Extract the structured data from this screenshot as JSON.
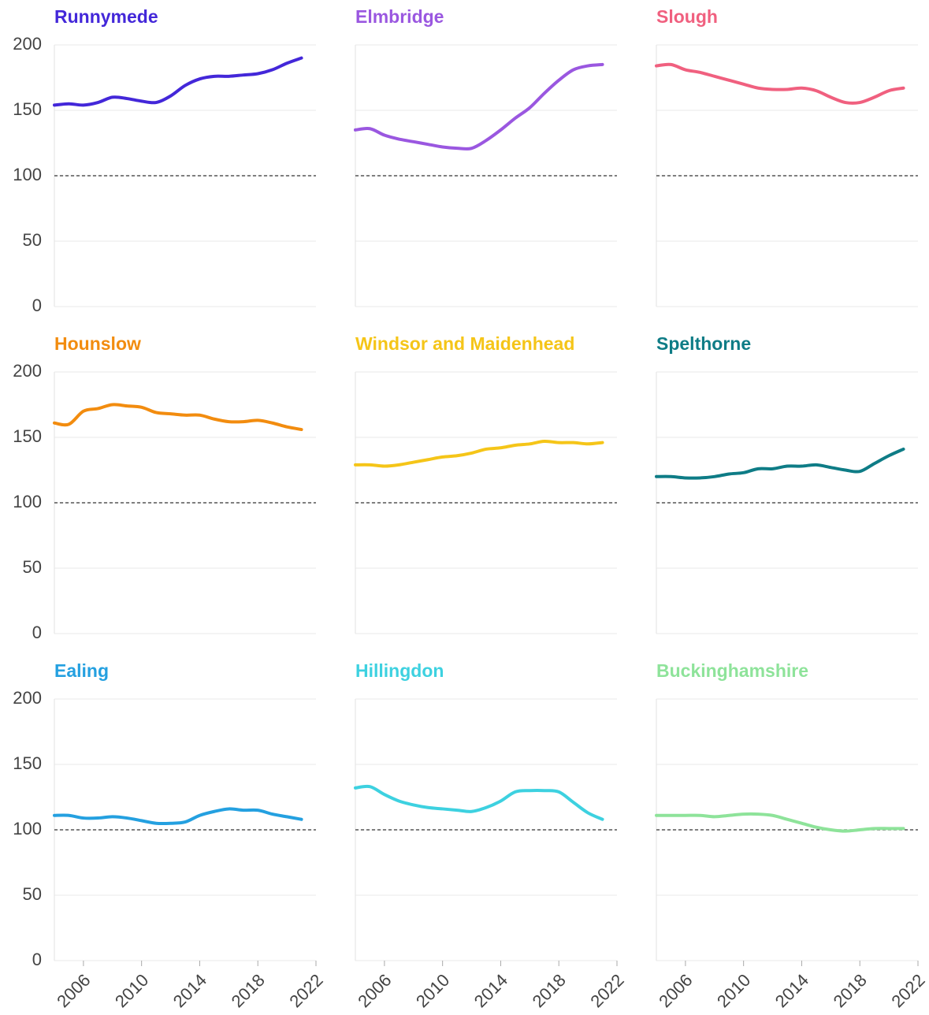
{
  "chart_data": {
    "type": "line",
    "x": [
      2004,
      2005,
      2006,
      2007,
      2008,
      2009,
      2010,
      2011,
      2012,
      2013,
      2014,
      2015,
      2016,
      2017,
      2018,
      2019,
      2020,
      2021
    ],
    "xlim": [
      2004,
      2022
    ],
    "xticks": [
      2006,
      2010,
      2014,
      2018,
      2022
    ],
    "ylim": [
      0,
      200
    ],
    "yticks": [
      0,
      50,
      100,
      150,
      200
    ],
    "grid": true,
    "reference_line": 100,
    "series": [
      {
        "name": "Runnymede",
        "color": "#4327d9",
        "values": [
          154,
          155,
          154,
          156,
          160,
          159,
          157,
          156,
          161,
          169,
          174,
          176,
          176,
          177,
          178,
          181,
          186,
          190
        ]
      },
      {
        "name": "Elmbridge",
        "color": "#9a57e0",
        "values": [
          135,
          136,
          131,
          128,
          126,
          124,
          122,
          121,
          121,
          127,
          135,
          144,
          152,
          163,
          173,
          181,
          184,
          185
        ]
      },
      {
        "name": "Slough",
        "color": "#f0607f",
        "values": [
          184,
          185,
          181,
          179,
          176,
          173,
          170,
          167,
          166,
          166,
          167,
          165,
          160,
          156,
          156,
          160,
          165,
          167
        ]
      },
      {
        "name": "Hounslow",
        "color": "#f28c0f",
        "values": [
          161,
          160,
          170,
          172,
          175,
          174,
          173,
          169,
          168,
          167,
          167,
          164,
          162,
          162,
          163,
          161,
          158,
          156
        ]
      },
      {
        "name": "Windsor and Maidenhead",
        "color": "#f5c518",
        "values": [
          129,
          129,
          128,
          129,
          131,
          133,
          135,
          136,
          138,
          141,
          142,
          144,
          145,
          147,
          146,
          146,
          145,
          146
        ]
      },
      {
        "name": "Spelthorne",
        "color": "#0e7c86",
        "values": [
          120,
          120,
          119,
          119,
          120,
          122,
          123,
          126,
          126,
          128,
          128,
          129,
          127,
          125,
          124,
          130,
          136,
          141
        ]
      },
      {
        "name": "Ealing",
        "color": "#24a0e0",
        "values": [
          111,
          111,
          109,
          109,
          110,
          109,
          107,
          105,
          105,
          106,
          111,
          114,
          116,
          115,
          115,
          112,
          110,
          108
        ]
      },
      {
        "name": "Hillingdon",
        "color": "#3dd1e0",
        "values": [
          132,
          133,
          127,
          122,
          119,
          117,
          116,
          115,
          114,
          117,
          122,
          129,
          130,
          130,
          129,
          121,
          113,
          108
        ]
      },
      {
        "name": "Buckinghamshire",
        "color": "#8ee39a",
        "values": [
          111,
          111,
          111,
          111,
          110,
          111,
          112,
          112,
          111,
          108,
          105,
          102,
          100,
          99,
          100,
          101,
          101,
          101
        ]
      }
    ]
  }
}
